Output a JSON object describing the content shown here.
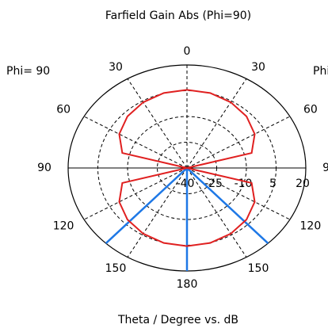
{
  "chart_data": {
    "type": "polar",
    "title": "Farfield Gain Abs (Phi=90)",
    "xlabel": "Theta / Degree vs. dB",
    "left_label": "Phi= 90",
    "right_label": "Phi",
    "theta": [
      0,
      15,
      30,
      45,
      60,
      75,
      90,
      105,
      120,
      135,
      150,
      165,
      180,
      195,
      210,
      225,
      240,
      255,
      270,
      285,
      300,
      315,
      330,
      345
    ],
    "series": [
      {
        "name": "Gain",
        "color": "#e02020",
        "values": [
          5.5,
          5.2,
          4.2,
          2.5,
          -0.5,
          -6.2,
          -40,
          -6.2,
          -0.5,
          2.5,
          4.2,
          5.2,
          5.5,
          5.2,
          4.2,
          2.5,
          -0.5,
          -6.2,
          -40,
          -6.2,
          -0.5,
          2.5,
          4.2,
          5.2
        ]
      }
    ],
    "markers": [
      137,
      180,
      223
    ],
    "marker_color": "#1e78e6",
    "rlim": [
      -40,
      20
    ],
    "rticks": [
      -40,
      -25,
      -10,
      5,
      20
    ],
    "thetaticks": [
      0,
      30,
      60,
      90,
      120,
      150,
      180,
      {
        "value": 210,
        "label": "150"
      },
      {
        "value": 240,
        "label": "120"
      },
      {
        "value": 270,
        "label": "90"
      },
      {
        "value": 300,
        "label": "60"
      },
      {
        "value": 330,
        "label": "30"
      }
    ],
    "grid": true
  }
}
